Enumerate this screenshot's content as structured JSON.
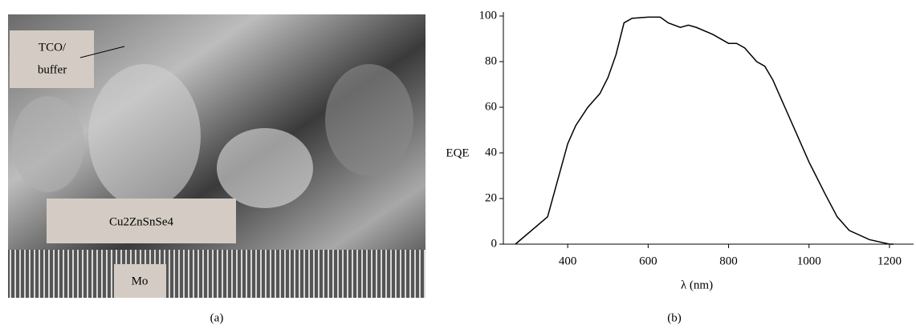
{
  "panel_a": {
    "labels": {
      "tco": [
        "TCO/",
        "buffer"
      ],
      "absorber": "Cu2ZnSnSe4",
      "contact": "Mo"
    },
    "caption": "(a)"
  },
  "chart_data": {
    "type": "line",
    "caption": "(b)",
    "x_label": "λ (nm)",
    "y_label": "EQE",
    "x": [
      270,
      350,
      400,
      420,
      450,
      480,
      500,
      520,
      540,
      560,
      600,
      630,
      650,
      680,
      700,
      720,
      760,
      800,
      820,
      840,
      870,
      890,
      910,
      940,
      970,
      1000,
      1040,
      1070,
      1100,
      1150,
      1200,
      1210
    ],
    "series": [
      {
        "color": "#000000",
        "values": [
          0,
          12,
          44,
          52,
          60,
          66,
          73,
          83,
          97,
          99,
          99.5,
          99.5,
          97,
          95,
          96,
          95,
          92,
          88,
          88,
          86,
          80,
          78,
          72,
          60,
          48,
          36,
          22,
          12,
          6,
          2,
          0,
          0
        ]
      }
    ],
    "xlim": [
      240,
      1260
    ],
    "ylim": [
      0,
      100
    ],
    "xticks": [
      400,
      600,
      800,
      1000,
      1200
    ],
    "yticks": [
      0,
      20,
      40,
      60,
      80,
      100
    ]
  }
}
